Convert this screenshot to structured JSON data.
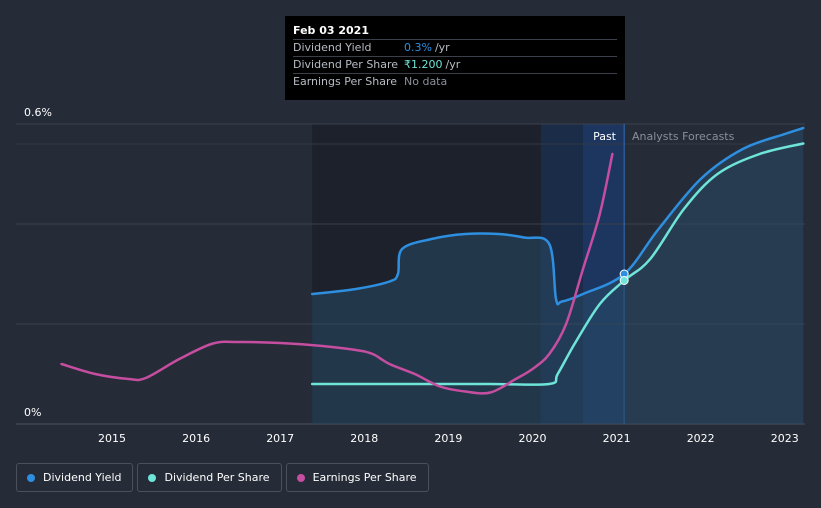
{
  "chart_data": {
    "type": "line",
    "x_axis": {
      "ticks": [
        "2015",
        "2016",
        "2017",
        "2018",
        "2019",
        "2020",
        "2021",
        "2022",
        "2023"
      ]
    },
    "y_axis": {
      "labels": [
        "0.6%",
        "0%"
      ],
      "range": [
        0,
        0.6
      ]
    },
    "regions": {
      "past": "Past",
      "forecast": "Analysts Forecasts"
    },
    "series": [
      {
        "name": "Dividend Yield",
        "color": "#2e8fe0",
        "unit": "%",
        "points": [
          [
            2017.38,
            0.26
          ],
          [
            2017.9,
            0.27
          ],
          [
            2018.3,
            0.285
          ],
          [
            2018.4,
            0.3
          ],
          [
            2018.45,
            0.35
          ],
          [
            2018.8,
            0.37
          ],
          [
            2019.2,
            0.38
          ],
          [
            2019.6,
            0.38
          ],
          [
            2019.9,
            0.373
          ],
          [
            2020.2,
            0.36
          ],
          [
            2020.28,
            0.25
          ],
          [
            2020.35,
            0.245
          ],
          [
            2020.6,
            0.26
          ],
          [
            2021.09,
            0.3
          ],
          [
            2021.5,
            0.39
          ],
          [
            2022.0,
            0.49
          ],
          [
            2022.5,
            0.55
          ],
          [
            2023.0,
            0.58
          ],
          [
            2023.22,
            0.592
          ]
        ]
      },
      {
        "name": "Dividend Per Share",
        "color": "#6fe4d8",
        "unit": "₹",
        "points": [
          [
            2017.38,
            0.08
          ],
          [
            2018.5,
            0.08
          ],
          [
            2019.5,
            0.08
          ],
          [
            2020.2,
            0.08
          ],
          [
            2020.3,
            0.1
          ],
          [
            2020.5,
            0.16
          ],
          [
            2020.8,
            0.24
          ],
          [
            2021.09,
            0.287
          ],
          [
            2021.4,
            0.33
          ],
          [
            2021.8,
            0.43
          ],
          [
            2022.2,
            0.5
          ],
          [
            2022.7,
            0.54
          ],
          [
            2023.22,
            0.561
          ]
        ]
      },
      {
        "name": "Earnings Per Share",
        "color": "#c64ea0",
        "unit": "₹",
        "points": [
          [
            2014.4,
            0.12
          ],
          [
            2014.8,
            0.1
          ],
          [
            2015.2,
            0.09
          ],
          [
            2015.4,
            0.092
          ],
          [
            2015.8,
            0.13
          ],
          [
            2016.2,
            0.161
          ],
          [
            2016.5,
            0.164
          ],
          [
            2017.0,
            0.162
          ],
          [
            2017.5,
            0.156
          ],
          [
            2017.9,
            0.148
          ],
          [
            2018.1,
            0.14
          ],
          [
            2018.3,
            0.12
          ],
          [
            2018.6,
            0.1
          ],
          [
            2018.9,
            0.075
          ],
          [
            2019.2,
            0.065
          ],
          [
            2019.5,
            0.063
          ],
          [
            2019.8,
            0.09
          ],
          [
            2020.0,
            0.11
          ],
          [
            2020.2,
            0.14
          ],
          [
            2020.4,
            0.2
          ],
          [
            2020.6,
            0.31
          ],
          [
            2020.8,
            0.42
          ],
          [
            2020.95,
            0.54
          ]
        ]
      }
    ],
    "tooltip": {
      "date": "Feb 03 2021",
      "rows": [
        {
          "name": "Dividend Yield",
          "value": "0.3%",
          "unit": "/yr",
          "color": "#2e8fe0"
        },
        {
          "name": "Dividend Per Share",
          "value": "₹1.200",
          "unit": "/yr",
          "color": "#6fe4d8"
        },
        {
          "name": "Earnings Per Share",
          "value": "No data",
          "unit": "",
          "color": "#8a8f99"
        }
      ]
    },
    "highlight_x": 2021.09,
    "legend": [
      {
        "name": "Dividend Yield",
        "color": "#2e8fe0"
      },
      {
        "name": "Dividend Per Share",
        "color": "#6fe4d8"
      },
      {
        "name": "Earnings Per Share",
        "color": "#c64ea0"
      }
    ],
    "grid": true
  }
}
